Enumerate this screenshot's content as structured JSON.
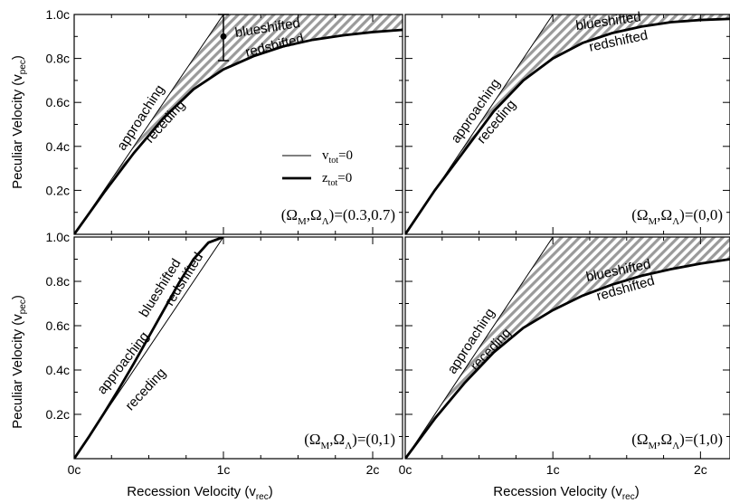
{
  "figure": {
    "xlabel": "Recession Velocity (v",
    "xlabel_sub": "rec",
    "xlabel_end": ")",
    "ylabel": "Peculiar Velocity (v",
    "ylabel_sub": "pec",
    "ylabel_end": ")",
    "x_ticks": [
      "0c",
      "1c",
      "2c"
    ],
    "y_ticks": [
      "0.2c",
      "0.4c",
      "0.6c",
      "0.8c",
      "1.0c"
    ],
    "legend": {
      "thin": {
        "v": "v",
        "sub": "tot",
        "rest": "=0"
      },
      "thick": {
        "v": "z",
        "sub": "tot",
        "rest": "=0"
      }
    },
    "colors": {
      "curve": "#000000",
      "hatch": "#9a9a9a"
    }
  },
  "chart_data": [
    {
      "type": "line",
      "panel": "top-left",
      "params": {
        "pre": "(Ω",
        "sub1": "M",
        "mid": ",Ω",
        "sub2": "Λ",
        "post": ")=(0.3,0.7)"
      },
      "xlim": [
        0,
        2.2
      ],
      "ylim": [
        0,
        1.0
      ],
      "series": [
        {
          "name": "v_tot=0",
          "style": "thin",
          "x": [
            0,
            0.25,
            0.5,
            0.75,
            1.0,
            1.05
          ],
          "y": [
            0,
            0.25,
            0.5,
            0.75,
            1.0,
            1.0
          ]
        },
        {
          "name": "z_tot=0",
          "style": "thick",
          "x": [
            0,
            0.2,
            0.4,
            0.6,
            0.8,
            1.0,
            1.2,
            1.4,
            1.6,
            1.8,
            2.0,
            2.2
          ],
          "y": [
            0,
            0.19,
            0.37,
            0.53,
            0.66,
            0.75,
            0.81,
            0.855,
            0.885,
            0.905,
            0.92,
            0.93
          ]
        }
      ],
      "errorbar": {
        "x": 1.0,
        "y": 0.9,
        "ylo": 0.79,
        "yhi": 1.0
      },
      "labels": {
        "approaching": "approaching",
        "receding": "receding",
        "blueshifted": "blueshifted",
        "redshifted": "redshifted"
      }
    },
    {
      "type": "line",
      "panel": "top-right",
      "params": {
        "pre": "(Ω",
        "sub1": "M",
        "mid": ",Ω",
        "sub2": "Λ",
        "post": ")=(0,0)"
      },
      "xlim": [
        0,
        2.2
      ],
      "ylim": [
        0,
        1.0
      ],
      "series": [
        {
          "name": "v_tot=0",
          "style": "thin",
          "x": [
            0,
            0.25,
            0.5,
            0.75,
            1.0,
            1.05
          ],
          "y": [
            0,
            0.25,
            0.5,
            0.75,
            1.0,
            1.0
          ]
        },
        {
          "name": "z_tot=0",
          "style": "thick",
          "x": [
            0,
            0.2,
            0.4,
            0.6,
            0.8,
            1.0,
            1.2,
            1.4,
            1.6,
            1.8,
            2.0,
            2.2
          ],
          "y": [
            0,
            0.2,
            0.38,
            0.56,
            0.7,
            0.8,
            0.87,
            0.915,
            0.945,
            0.965,
            0.975,
            0.98
          ]
        }
      ],
      "labels": {
        "approaching": "approaching",
        "receding": "receding",
        "blueshifted": "blueshifted",
        "redshifted": "redshifted"
      }
    },
    {
      "type": "line",
      "panel": "bottom-left",
      "params": {
        "pre": "(Ω",
        "sub1": "M",
        "mid": ",Ω",
        "sub2": "Λ",
        "post": ")=(0,1)"
      },
      "xlim": [
        0,
        2.2
      ],
      "ylim": [
        0,
        1.0
      ],
      "series": [
        {
          "name": "v_tot=0",
          "style": "thin",
          "x": [
            0,
            0.25,
            0.5,
            0.75,
            1.0
          ],
          "y": [
            0,
            0.25,
            0.5,
            0.75,
            1.0
          ]
        },
        {
          "name": "z_tot=0",
          "style": "thick",
          "x": [
            0,
            0.1,
            0.2,
            0.3,
            0.4,
            0.5,
            0.6,
            0.7,
            0.8,
            0.9,
            1.0
          ],
          "y": [
            0,
            0.1,
            0.205,
            0.315,
            0.43,
            0.55,
            0.67,
            0.79,
            0.9,
            0.975,
            1.0
          ]
        }
      ],
      "labels": {
        "approaching": "approaching",
        "receding": "receding",
        "blueshifted": "blueshifted",
        "redshifted": "redshifted"
      }
    },
    {
      "type": "line",
      "panel": "bottom-right",
      "params": {
        "pre": "(Ω",
        "sub1": "M",
        "mid": ",Ω",
        "sub2": "Λ",
        "post": ")=(1,0)"
      },
      "xlim": [
        0,
        2.2
      ],
      "ylim": [
        0,
        1.0
      ],
      "series": [
        {
          "name": "v_tot=0",
          "style": "thin",
          "x": [
            0,
            0.25,
            0.5,
            0.75,
            1.0,
            1.05
          ],
          "y": [
            0,
            0.25,
            0.5,
            0.75,
            1.0,
            1.0
          ]
        },
        {
          "name": "z_tot=0",
          "style": "thick",
          "x": [
            0,
            0.2,
            0.4,
            0.6,
            0.8,
            1.0,
            1.2,
            1.4,
            1.6,
            1.8,
            2.0,
            2.2
          ],
          "y": [
            0,
            0.18,
            0.34,
            0.48,
            0.59,
            0.67,
            0.735,
            0.785,
            0.825,
            0.855,
            0.88,
            0.9
          ]
        }
      ],
      "labels": {
        "approaching": "approaching",
        "receding": "receding",
        "blueshifted": "blueshifted",
        "redshifted": "redshifted"
      }
    }
  ]
}
